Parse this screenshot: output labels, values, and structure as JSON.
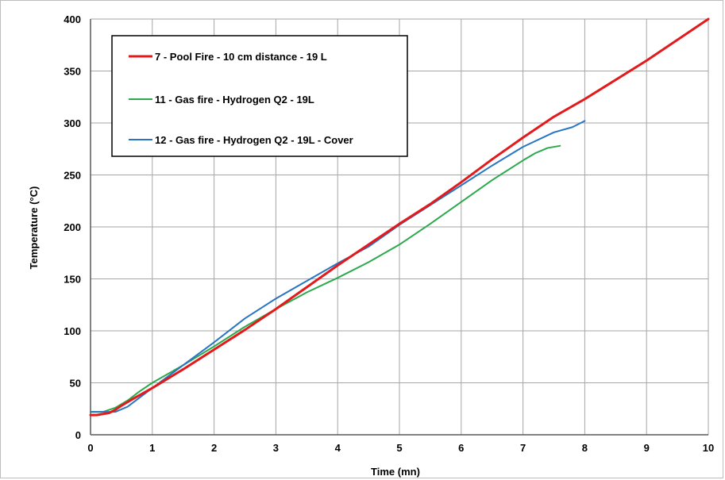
{
  "chart_data": {
    "type": "line",
    "title": "",
    "xlabel": "Time (mn)",
    "ylabel": "Temperature (°C)",
    "xlim": [
      0,
      10
    ],
    "ylim": [
      0,
      400
    ],
    "x_ticks": [
      "0",
      "1",
      "2",
      "3",
      "4",
      "5",
      "6",
      "7",
      "8",
      "9",
      "10"
    ],
    "y_ticks": [
      "0",
      "50",
      "100",
      "150",
      "200",
      "250",
      "300",
      "350",
      "400"
    ],
    "grid": true,
    "legend_position": "top-left",
    "series": [
      {
        "name": "7 - Pool Fire - 10 cm distance - 19 L",
        "color": "#e31a1c",
        "x": [
          0,
          0.1,
          0.2,
          0.3,
          0.4,
          0.5,
          0.7,
          1.0,
          1.5,
          2.0,
          2.5,
          3.0,
          3.5,
          4.0,
          4.5,
          5.0,
          5.5,
          6.0,
          6.5,
          7.0,
          7.5,
          8.0,
          9.0,
          10.0
        ],
        "y": [
          19,
          19,
          20,
          21,
          24,
          28,
          35,
          45,
          63,
          82,
          101,
          121,
          142,
          163,
          183,
          203,
          222,
          243,
          265,
          286,
          306,
          323,
          360,
          400
        ]
      },
      {
        "name": "11 - Gas fire - Hydrogen Q2 - 19L",
        "color": "#2ca94d",
        "x": [
          0,
          0.2,
          0.4,
          0.6,
          0.8,
          1.0,
          1.5,
          2.0,
          2.5,
          3.0,
          3.5,
          4.0,
          4.5,
          5.0,
          5.5,
          6.0,
          6.5,
          7.0,
          7.2,
          7.4,
          7.6
        ],
        "y": [
          22,
          22,
          26,
          33,
          42,
          50,
          67,
          85,
          104,
          121,
          137,
          151,
          166,
          183,
          203,
          224,
          245,
          264,
          271,
          276,
          278
        ]
      },
      {
        "name": "12 - Gas fire - Hydrogen Q2 - 19L - Cover",
        "color": "#2775c4",
        "x": [
          0,
          0.2,
          0.4,
          0.6,
          0.8,
          1.0,
          1.5,
          2.0,
          2.5,
          3.0,
          3.5,
          4.0,
          4.5,
          5.0,
          5.5,
          6.0,
          6.5,
          7.0,
          7.5,
          7.8,
          8.0
        ],
        "y": [
          22,
          22,
          22,
          27,
          36,
          45,
          67,
          89,
          112,
          131,
          148,
          165,
          181,
          202,
          221,
          240,
          259,
          277,
          291,
          296,
          302
        ]
      }
    ]
  }
}
